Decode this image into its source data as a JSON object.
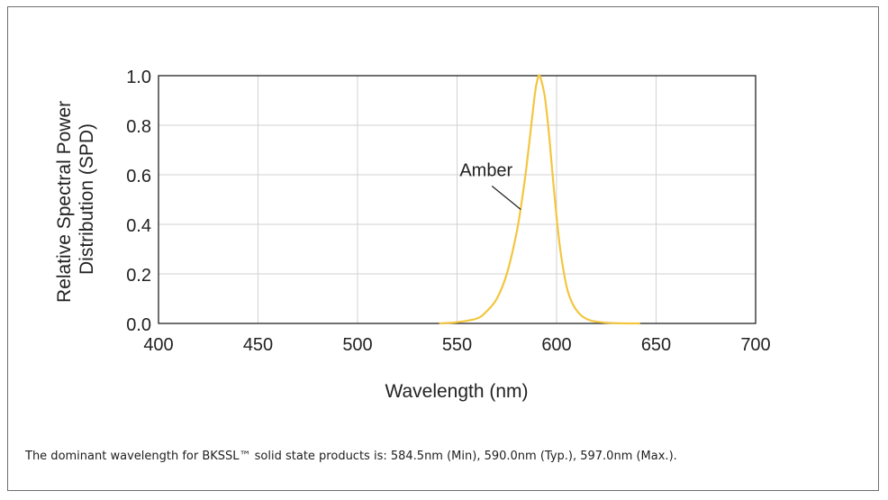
{
  "chart_data": {
    "type": "line",
    "title": "",
    "xlabel": "Wavelength (nm)",
    "ylabel": [
      "Relative Spectral Power",
      "Distribution (SPD)"
    ],
    "xlim": [
      400,
      700
    ],
    "ylim": [
      0,
      1.0
    ],
    "xticks": [
      "400",
      "450",
      "500",
      "550",
      "600",
      "650",
      "700"
    ],
    "yticks": [
      "0.0",
      "0.2",
      "0.4",
      "0.6",
      "0.8",
      "1.0"
    ],
    "grid": true,
    "series": [
      {
        "name": "Amber",
        "color": "#f3c640",
        "x": [
          541,
          550,
          560,
          565,
          570,
          575,
          580,
          583,
          585,
          587,
          589,
          590,
          591,
          592,
          594,
          596,
          598,
          600,
          602,
          605,
          608,
          612,
          616,
          620,
          625,
          630,
          636,
          642
        ],
        "y": [
          0.0,
          0.005,
          0.02,
          0.05,
          0.1,
          0.2,
          0.37,
          0.52,
          0.64,
          0.78,
          0.92,
          0.97,
          1.0,
          0.99,
          0.92,
          0.78,
          0.6,
          0.43,
          0.29,
          0.15,
          0.08,
          0.035,
          0.015,
          0.007,
          0.003,
          0.001,
          0.0,
          0.0
        ]
      }
    ],
    "annotations": [
      {
        "text": "Amber",
        "x": 582,
        "y": 0.46
      }
    ]
  },
  "caption": "The dominant wavelength for BKSSL™ solid state products is:  584.5nm (Min), 590.0nm (Typ.), 597.0nm (Max.)."
}
